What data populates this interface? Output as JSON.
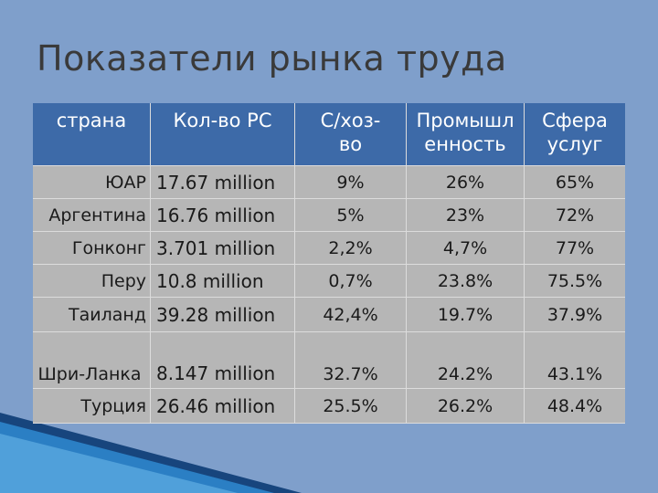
{
  "slide": {
    "title": "Показатели рынка труда"
  },
  "table": {
    "headers": [
      "страна",
      "Кол-во РС",
      "С/хоз-во",
      "Промышленность",
      "Сфера услуг"
    ],
    "header_lines": [
      [
        "страна"
      ],
      [
        "Кол-во РС"
      ],
      [
        "С/хоз-",
        "во"
      ],
      [
        "Промышл",
        "енность"
      ],
      [
        "Сфера",
        "услуг"
      ]
    ],
    "rows": [
      {
        "country": "ЮАР",
        "labor": "17.67 million",
        "agri": "9%",
        "industry": "26%",
        "services": "65%"
      },
      {
        "country": "Аргентина",
        "labor": "16.76 million",
        "agri": "5%",
        "industry": "23%",
        "services": "72%"
      },
      {
        "country": "Гонконг",
        "labor": "3.701 million",
        "agri": "2,2%",
        "industry": "4,7%",
        "services": "77%"
      },
      {
        "country": "Перу",
        "labor": "10.8 million",
        "agri": "0,7%",
        "industry": "23.8%",
        "services": "75.5%"
      },
      {
        "country": "Таиланд",
        "labor": "39.28 million",
        "agri": "42,4%",
        "industry": "19.7%",
        "services": "37.9%"
      },
      {
        "country": "Шри-Ланка",
        "labor": "8.147 million",
        "agri": "32.7%",
        "industry": "24.2%",
        "services": "43.1%"
      },
      {
        "country": "Турция",
        "labor": "26.46 million",
        "agri": "25.5%",
        "industry": "26.2%",
        "services": "48.4%"
      }
    ]
  },
  "colors": {
    "background": "#7f9fcb",
    "header_fill": "#3d6aa8",
    "body_fill": "#b6b6b6",
    "accent_dark": "#1b4f8a",
    "accent_light": "#2f8fd1"
  }
}
